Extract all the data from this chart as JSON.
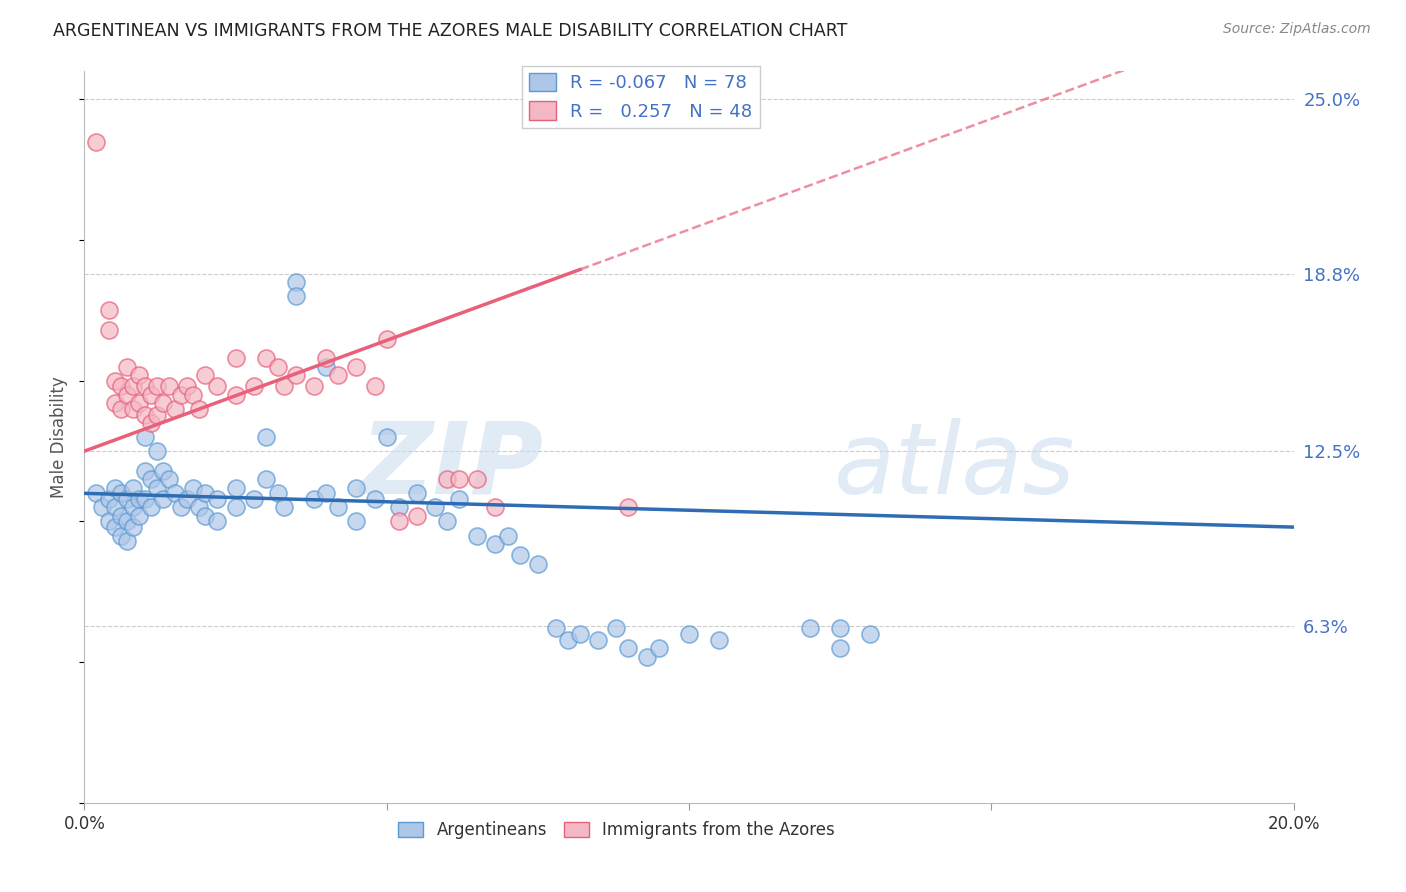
{
  "title": "ARGENTINEAN VS IMMIGRANTS FROM THE AZORES MALE DISABILITY CORRELATION CHART",
  "source": "Source: ZipAtlas.com",
  "ylabel": "Male Disability",
  "x_min": 0.0,
  "x_max": 0.2,
  "y_min": 0.0,
  "y_max": 0.26,
  "yticks": [
    0.063,
    0.125,
    0.188,
    0.25
  ],
  "ytick_labels": [
    "6.3%",
    "12.5%",
    "18.8%",
    "25.0%"
  ],
  "xticks": [
    0.0,
    0.05,
    0.1,
    0.15,
    0.2
  ],
  "xtick_labels": [
    "0.0%",
    "",
    "",
    "",
    "20.0%"
  ],
  "blue_color": "#AEC6E8",
  "pink_color": "#F4B8C4",
  "blue_edge_color": "#5B9BD5",
  "pink_edge_color": "#E8607A",
  "blue_line_color": "#2E6DB4",
  "pink_line_color": "#E8607A",
  "blue_scatter": [
    [
      0.002,
      0.11
    ],
    [
      0.003,
      0.105
    ],
    [
      0.004,
      0.108
    ],
    [
      0.004,
      0.1
    ],
    [
      0.005,
      0.112
    ],
    [
      0.005,
      0.105
    ],
    [
      0.005,
      0.098
    ],
    [
      0.006,
      0.11
    ],
    [
      0.006,
      0.102
    ],
    [
      0.006,
      0.095
    ],
    [
      0.007,
      0.108
    ],
    [
      0.007,
      0.1
    ],
    [
      0.007,
      0.093
    ],
    [
      0.008,
      0.112
    ],
    [
      0.008,
      0.105
    ],
    [
      0.008,
      0.098
    ],
    [
      0.009,
      0.108
    ],
    [
      0.009,
      0.102
    ],
    [
      0.01,
      0.13
    ],
    [
      0.01,
      0.118
    ],
    [
      0.01,
      0.108
    ],
    [
      0.011,
      0.115
    ],
    [
      0.011,
      0.105
    ],
    [
      0.012,
      0.125
    ],
    [
      0.012,
      0.112
    ],
    [
      0.013,
      0.118
    ],
    [
      0.013,
      0.108
    ],
    [
      0.014,
      0.115
    ],
    [
      0.015,
      0.11
    ],
    [
      0.016,
      0.105
    ],
    [
      0.017,
      0.108
    ],
    [
      0.018,
      0.112
    ],
    [
      0.019,
      0.105
    ],
    [
      0.02,
      0.11
    ],
    [
      0.02,
      0.102
    ],
    [
      0.022,
      0.108
    ],
    [
      0.022,
      0.1
    ],
    [
      0.025,
      0.112
    ],
    [
      0.025,
      0.105
    ],
    [
      0.028,
      0.108
    ],
    [
      0.03,
      0.13
    ],
    [
      0.03,
      0.115
    ],
    [
      0.032,
      0.11
    ],
    [
      0.033,
      0.105
    ],
    [
      0.035,
      0.185
    ],
    [
      0.035,
      0.18
    ],
    [
      0.038,
      0.108
    ],
    [
      0.04,
      0.155
    ],
    [
      0.04,
      0.11
    ],
    [
      0.042,
      0.105
    ],
    [
      0.045,
      0.112
    ],
    [
      0.045,
      0.1
    ],
    [
      0.048,
      0.108
    ],
    [
      0.05,
      0.13
    ],
    [
      0.052,
      0.105
    ],
    [
      0.055,
      0.11
    ],
    [
      0.058,
      0.105
    ],
    [
      0.06,
      0.1
    ],
    [
      0.062,
      0.108
    ],
    [
      0.065,
      0.095
    ],
    [
      0.068,
      0.092
    ],
    [
      0.07,
      0.095
    ],
    [
      0.072,
      0.088
    ],
    [
      0.075,
      0.085
    ],
    [
      0.078,
      0.062
    ],
    [
      0.08,
      0.058
    ],
    [
      0.082,
      0.06
    ],
    [
      0.085,
      0.058
    ],
    [
      0.088,
      0.062
    ],
    [
      0.09,
      0.055
    ],
    [
      0.093,
      0.052
    ],
    [
      0.095,
      0.055
    ],
    [
      0.1,
      0.06
    ],
    [
      0.105,
      0.058
    ],
    [
      0.12,
      0.062
    ],
    [
      0.125,
      0.062
    ],
    [
      0.125,
      0.055
    ],
    [
      0.13,
      0.06
    ]
  ],
  "pink_scatter": [
    [
      0.002,
      0.235
    ],
    [
      0.004,
      0.175
    ],
    [
      0.004,
      0.168
    ],
    [
      0.005,
      0.15
    ],
    [
      0.005,
      0.142
    ],
    [
      0.006,
      0.148
    ],
    [
      0.006,
      0.14
    ],
    [
      0.007,
      0.155
    ],
    [
      0.007,
      0.145
    ],
    [
      0.008,
      0.148
    ],
    [
      0.008,
      0.14
    ],
    [
      0.009,
      0.152
    ],
    [
      0.009,
      0.142
    ],
    [
      0.01,
      0.148
    ],
    [
      0.01,
      0.138
    ],
    [
      0.011,
      0.145
    ],
    [
      0.011,
      0.135
    ],
    [
      0.012,
      0.148
    ],
    [
      0.012,
      0.138
    ],
    [
      0.013,
      0.142
    ],
    [
      0.014,
      0.148
    ],
    [
      0.015,
      0.14
    ],
    [
      0.016,
      0.145
    ],
    [
      0.017,
      0.148
    ],
    [
      0.018,
      0.145
    ],
    [
      0.019,
      0.14
    ],
    [
      0.02,
      0.152
    ],
    [
      0.022,
      0.148
    ],
    [
      0.025,
      0.145
    ],
    [
      0.025,
      0.158
    ],
    [
      0.028,
      0.148
    ],
    [
      0.03,
      0.158
    ],
    [
      0.032,
      0.155
    ],
    [
      0.033,
      0.148
    ],
    [
      0.035,
      0.152
    ],
    [
      0.038,
      0.148
    ],
    [
      0.04,
      0.158
    ],
    [
      0.042,
      0.152
    ],
    [
      0.045,
      0.155
    ],
    [
      0.048,
      0.148
    ],
    [
      0.05,
      0.165
    ],
    [
      0.052,
      0.1
    ],
    [
      0.055,
      0.102
    ],
    [
      0.06,
      0.115
    ],
    [
      0.062,
      0.115
    ],
    [
      0.065,
      0.115
    ],
    [
      0.068,
      0.105
    ],
    [
      0.09,
      0.105
    ]
  ],
  "watermark_zip": "ZIP",
  "watermark_atlas": "atlas",
  "background_color": "#FFFFFF",
  "grid_color": "#CCCCCC"
}
